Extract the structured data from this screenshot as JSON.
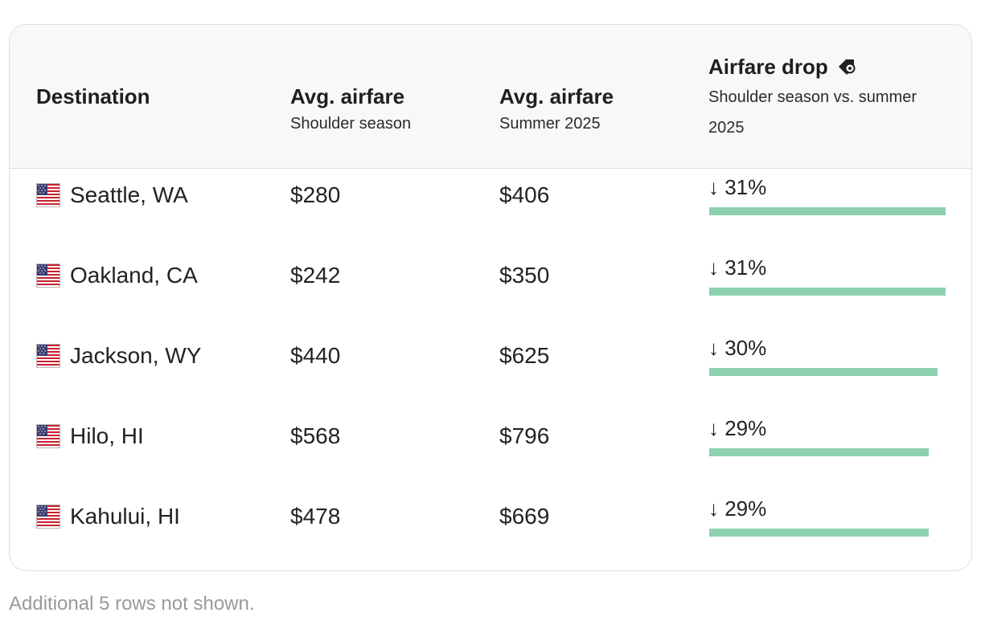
{
  "table": {
    "headers": {
      "destination": "Destination",
      "shoulder_title": "Avg. airfare",
      "shoulder_sub": "Shoulder season",
      "summer_title": "Avg. airfare",
      "summer_sub": "Summer 2025",
      "drop_title": "Airfare drop",
      "drop_sub": "Shoulder season vs. summer 2025",
      "drop_icon": "price-tag-icon"
    },
    "rows": [
      {
        "flag_icon": "us-flag-icon",
        "destination": "Seattle, WA",
        "shoulder": "$280",
        "summer": "$406",
        "drop": "↓ 31%",
        "drop_value": 31
      },
      {
        "flag_icon": "us-flag-icon",
        "destination": "Oakland, CA",
        "shoulder": "$242",
        "summer": "$350",
        "drop": "↓ 31%",
        "drop_value": 31
      },
      {
        "flag_icon": "us-flag-icon",
        "destination": "Jackson, WY",
        "shoulder": "$440",
        "summer": "$625",
        "drop": "↓ 30%",
        "drop_value": 30
      },
      {
        "flag_icon": "us-flag-icon",
        "destination": "Hilo, HI",
        "shoulder": "$568",
        "summer": "$796",
        "drop": "↓ 29%",
        "drop_value": 29
      },
      {
        "flag_icon": "us-flag-icon",
        "destination": "Kahului, HI",
        "shoulder": "$478",
        "summer": "$669",
        "drop": "↓ 29%",
        "drop_value": 29
      }
    ],
    "bar_color": "#8dd1b1"
  },
  "footnote": "Additional 5 rows not shown."
}
